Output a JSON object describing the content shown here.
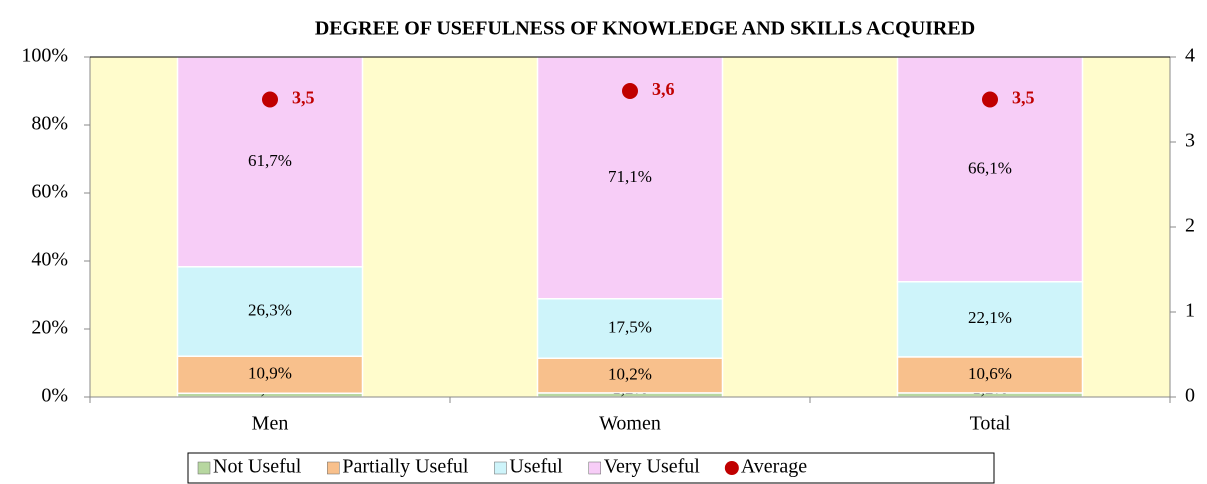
{
  "chart_data": {
    "type": "bar",
    "stacked": true,
    "title": "DEGREE OF USEFULNESS OF KNOWLEDGE AND SKILLS ACQUIRED",
    "categories": [
      "Men",
      "Women",
      "Total"
    ],
    "series": [
      {
        "name": "Not Useful",
        "color": "#b7d7a0",
        "values": [
          1.1,
          1.2,
          1.2
        ],
        "value_labels": [
          "1,1%",
          "1,2%",
          "1,2%"
        ]
      },
      {
        "name": "Partially Useful",
        "color": "#f8c08c",
        "values": [
          10.9,
          10.2,
          10.6
        ],
        "value_labels": [
          "10,9%",
          "10,2%",
          "10,6%"
        ]
      },
      {
        "name": "Useful",
        "color": "#cef4fa",
        "values": [
          26.3,
          17.5,
          22.1
        ],
        "value_labels": [
          "26,3%",
          "17,5%",
          "22,1%"
        ]
      },
      {
        "name": "Very Useful",
        "color": "#f7cdf7",
        "values": [
          61.7,
          71.1,
          66.1
        ],
        "value_labels": [
          "61,7%",
          "71,1%",
          "66,1%"
        ]
      },
      {
        "name": "Average",
        "color": "#c00000",
        "type": "scatter",
        "axis": "y2",
        "values": [
          3.5,
          3.6,
          3.5
        ],
        "value_labels": [
          "3,5",
          "3,6",
          "3,5"
        ]
      }
    ],
    "ylim": [
      0,
      100
    ],
    "yticks": [
      {
        "value": 0,
        "label": "0%"
      },
      {
        "value": 20,
        "label": "20%"
      },
      {
        "value": 40,
        "label": "40%"
      },
      {
        "value": 60,
        "label": "60%"
      },
      {
        "value": 80,
        "label": "80%"
      },
      {
        "value": 100,
        "label": "100%"
      }
    ],
    "y2lim": [
      0,
      4
    ],
    "y2ticks": [
      0,
      1,
      2,
      3,
      4
    ],
    "plot_background": "#fffccc",
    "legend": "bottom"
  }
}
